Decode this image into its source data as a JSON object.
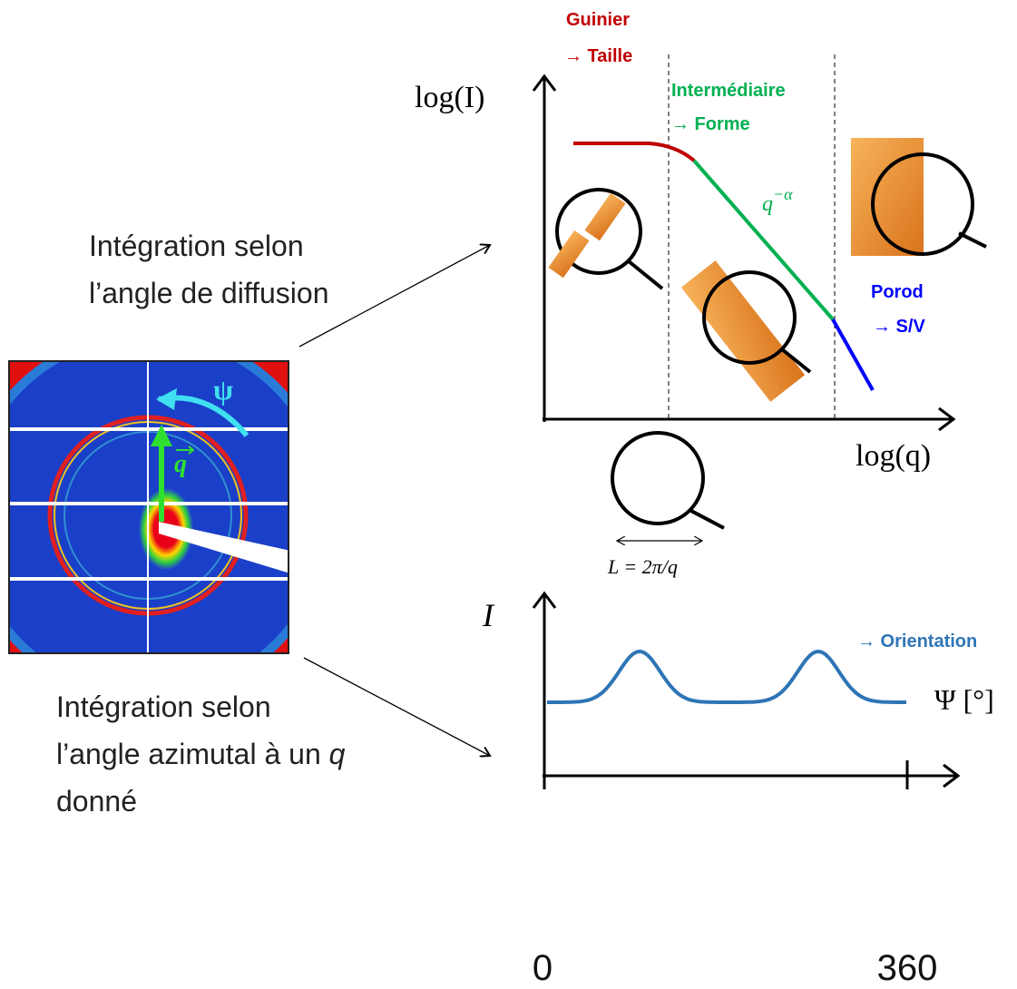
{
  "guinier": {
    "title": "Guinier",
    "meaning": "→ Taille"
  },
  "intermediate": {
    "title": "Intermédiaire",
    "meaning": "→ Forme",
    "slope_base": "q",
    "slope_exponent": "−α"
  },
  "porod": {
    "title": "Porod",
    "meaning": "→ S/V"
  },
  "top_plot": {
    "y_label": "log(I)",
    "x_label": "log(q)",
    "length_label": "L = 2π/q"
  },
  "bottom_plot": {
    "y_label": "I",
    "x_label": "Ψ [°]",
    "annotation": "→ Orientation",
    "x_start": "0",
    "x_end": "360"
  },
  "detector": {
    "angle_symbol": "ψ",
    "vector_symbol": "q"
  },
  "radial_text": {
    "line1": "Intégration selon",
    "line2": "l’angle de diffusion"
  },
  "azimuthal_text": {
    "line1": "Intégration selon",
    "line2": "l’angle azimutal à un ",
    "line2_var": "q",
    "line3": "donné"
  }
}
